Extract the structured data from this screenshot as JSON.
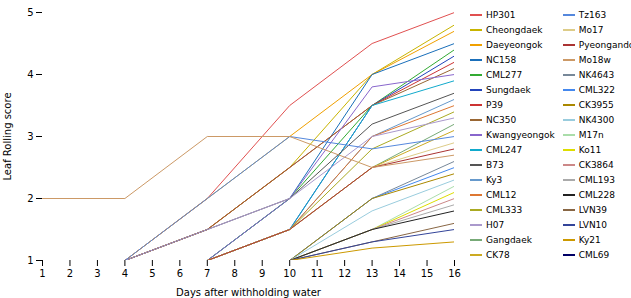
{
  "chart_data": {
    "type": "line",
    "xlabel": "Days after withholding water",
    "ylabel": "Leaf Rolling score",
    "x": [
      1,
      4,
      7,
      10,
      13,
      16
    ],
    "xlim": [
      1,
      16
    ],
    "ylim": [
      1,
      5
    ],
    "xticks": [
      1,
      2,
      3,
      4,
      5,
      6,
      7,
      8,
      9,
      10,
      11,
      12,
      13,
      14,
      15,
      16
    ],
    "yticks": [
      1,
      2,
      3,
      4,
      5
    ],
    "grid": false,
    "legend": "right",
    "series": [
      {
        "name": "HP301",
        "color": "#e05050",
        "values": [
          1.0,
          1.0,
          2.0,
          3.5,
          4.5,
          5.0
        ]
      },
      {
        "name": "Cheongdaek",
        "color": "#c8b400",
        "values": [
          1.0,
          1.0,
          1.5,
          2.5,
          4.0,
          4.8
        ]
      },
      {
        "name": "Daeyeongok",
        "color": "#f0a000",
        "values": [
          1.0,
          1.0,
          2.0,
          3.0,
          4.0,
          4.7
        ]
      },
      {
        "name": "NC158",
        "color": "#1a6fba",
        "values": [
          1.0,
          1.0,
          1.0,
          2.0,
          4.0,
          4.5
        ]
      },
      {
        "name": "CML277",
        "color": "#33aa33",
        "values": [
          1.0,
          1.0,
          1.0,
          2.0,
          3.5,
          4.4
        ]
      },
      {
        "name": "Sungdaek",
        "color": "#2244bb",
        "values": [
          1.0,
          1.0,
          1.0,
          1.5,
          3.5,
          4.3
        ]
      },
      {
        "name": "P39",
        "color": "#cc3333",
        "values": [
          1.0,
          1.0,
          1.5,
          2.5,
          3.5,
          4.2
        ]
      },
      {
        "name": "NC350",
        "color": "#996633",
        "values": [
          1.0,
          1.0,
          1.5,
          2.5,
          3.5,
          4.1
        ]
      },
      {
        "name": "Kwangyeongok",
        "color": "#8866cc",
        "values": [
          1.0,
          1.0,
          1.0,
          2.0,
          3.8,
          4.0
        ]
      },
      {
        "name": "CML247",
        "color": "#11aacc",
        "values": [
          1.0,
          1.0,
          1.0,
          1.5,
          3.5,
          3.9
        ]
      },
      {
        "name": "B73",
        "color": "#555555",
        "values": [
          1.0,
          1.0,
          1.5,
          2.0,
          3.2,
          3.7
        ]
      },
      {
        "name": "Ky3",
        "color": "#6699cc",
        "values": [
          1.0,
          1.0,
          1.0,
          1.5,
          3.0,
          3.6
        ]
      },
      {
        "name": "CML12",
        "color": "#dd7733",
        "values": [
          1.0,
          1.0,
          1.0,
          1.5,
          3.0,
          3.5
        ]
      },
      {
        "name": "CML333",
        "color": "#aaaa22",
        "values": [
          1.0,
          1.0,
          1.0,
          1.5,
          2.8,
          3.4
        ]
      },
      {
        "name": "H07",
        "color": "#aa99cc",
        "values": [
          1.0,
          1.0,
          1.5,
          2.0,
          3.0,
          3.3
        ]
      },
      {
        "name": "Gangdaek",
        "color": "#77aa77",
        "values": [
          1.0,
          1.0,
          1.0,
          1.5,
          2.5,
          3.2
        ]
      },
      {
        "name": "CK78",
        "color": "#ccaa22",
        "values": [
          1.0,
          1.0,
          1.0,
          1.5,
          2.5,
          3.1
        ]
      },
      {
        "name": "Tz163",
        "color": "#5588dd",
        "values": [
          1.0,
          1.0,
          2.0,
          3.0,
          2.8,
          3.0
        ]
      },
      {
        "name": "Mo17",
        "color": "#ddcc88",
        "values": [
          1.0,
          1.0,
          1.0,
          1.5,
          2.5,
          2.9
        ]
      },
      {
        "name": "Pyeongando",
        "color": "#aa3333",
        "values": [
          1.0,
          1.0,
          1.0,
          1.5,
          2.5,
          2.8
        ]
      },
      {
        "name": "Mo18w",
        "color": "#cc9966",
        "values": [
          2.0,
          2.0,
          3.0,
          3.0,
          2.5,
          2.7
        ]
      },
      {
        "name": "NK4643",
        "color": "#778899",
        "values": [
          1.0,
          1.0,
          1.0,
          1.0,
          2.0,
          2.6
        ]
      },
      {
        "name": "CML322",
        "color": "#4488ee",
        "values": [
          1.0,
          1.0,
          1.0,
          1.0,
          2.0,
          2.5
        ]
      },
      {
        "name": "CK3955",
        "color": "#aa8800",
        "values": [
          1.0,
          1.0,
          1.0,
          1.0,
          2.0,
          2.4
        ]
      },
      {
        "name": "NK4300",
        "color": "#99ccdd",
        "values": [
          1.0,
          1.0,
          1.0,
          1.0,
          1.8,
          2.3
        ]
      },
      {
        "name": "M17n",
        "color": "#aaddaa",
        "values": [
          1.0,
          1.0,
          1.0,
          1.0,
          1.5,
          2.2
        ]
      },
      {
        "name": "Ko11",
        "color": "#dddd00",
        "values": [
          1.0,
          1.0,
          1.0,
          1.0,
          1.5,
          2.1
        ]
      },
      {
        "name": "CK3864",
        "color": "#cc8888",
        "values": [
          1.0,
          1.0,
          1.0,
          1.0,
          1.5,
          2.0
        ]
      },
      {
        "name": "CML193",
        "color": "#aaaaaa",
        "values": [
          1.0,
          1.0,
          1.0,
          1.0,
          1.5,
          1.9
        ]
      },
      {
        "name": "CML228",
        "color": "#222222",
        "values": [
          1.0,
          1.0,
          1.0,
          1.0,
          1.5,
          1.8
        ]
      },
      {
        "name": "LVN39",
        "color": "#886644",
        "values": [
          1.0,
          1.0,
          1.0,
          1.0,
          1.3,
          1.6
        ]
      },
      {
        "name": "LVN10",
        "color": "#334499",
        "values": [
          1.0,
          1.0,
          1.0,
          1.0,
          1.3,
          1.5
        ]
      },
      {
        "name": "Ky21",
        "color": "#cc9900",
        "values": [
          1.0,
          1.0,
          1.0,
          1.0,
          1.2,
          1.3
        ]
      },
      {
        "name": "CML69",
        "color": "#000066",
        "values": [
          1.0,
          1.0,
          1.0,
          1.0,
          1.0,
          1.0
        ]
      }
    ]
  }
}
